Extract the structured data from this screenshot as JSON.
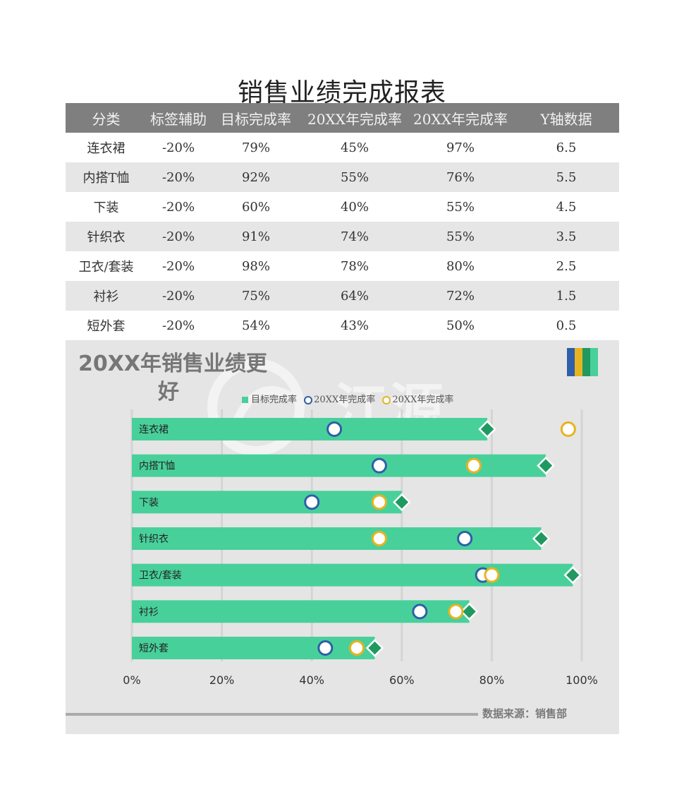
{
  "report": {
    "title": "销售业绩完成报表"
  },
  "table": {
    "headers": [
      "分类",
      "标签辅助",
      "目标完成率",
      "20XX年完成率",
      "20XX年完成率",
      "Y轴数据"
    ],
    "rows": [
      [
        "连衣裙",
        "-20%",
        "79%",
        "45%",
        "97%",
        "6.5"
      ],
      [
        "内搭T恤",
        "-20%",
        "92%",
        "55%",
        "76%",
        "5.5"
      ],
      [
        "下装",
        "-20%",
        "60%",
        "40%",
        "55%",
        "4.5"
      ],
      [
        "针织衣",
        "-20%",
        "91%",
        "74%",
        "55%",
        "3.5"
      ],
      [
        "卫衣/套装",
        "-20%",
        "98%",
        "78%",
        "80%",
        "2.5"
      ],
      [
        "衬衫",
        "-20%",
        "75%",
        "64%",
        "72%",
        "1.5"
      ],
      [
        "短外套",
        "-20%",
        "54%",
        "43%",
        "50%",
        "0.5"
      ]
    ]
  },
  "chart": {
    "title_line1": "20XX年销售业绩更",
    "title_line2": "好",
    "source": "数据来源：销售部",
    "watermark_text": "江源",
    "colors": {
      "target": "#48d09b",
      "marker_target": "#1f9960",
      "series_blue": "#2e5fa8",
      "series_yellow": "#e8b321",
      "brand_1": "#2e5fa8",
      "brand_2": "#e8b321",
      "brand_3": "#1f9960",
      "brand_4": "#48d09b"
    }
  },
  "chart_data": {
    "type": "bar",
    "orientation": "horizontal",
    "categories": [
      "连衣裙",
      "内搭T恤",
      "下装",
      "针织衣",
      "卫衣/套装",
      "衬衫",
      "短外套"
    ],
    "series": [
      {
        "name": "目标完成率",
        "kind": "bar+diamond",
        "values": [
          79,
          92,
          60,
          91,
          98,
          75,
          54
        ]
      },
      {
        "name": "20XX年完成率",
        "kind": "circle-blue",
        "values": [
          45,
          55,
          40,
          74,
          78,
          64,
          43
        ]
      },
      {
        "name": "20XX年完成率",
        "kind": "circle-yellow",
        "values": [
          97,
          76,
          55,
          55,
          80,
          72,
          50
        ]
      }
    ],
    "x_ticks": [
      "0%",
      "20%",
      "40%",
      "60%",
      "80%",
      "100%"
    ],
    "xlim": [
      0,
      100
    ],
    "legend_position": "top",
    "grid": true
  }
}
